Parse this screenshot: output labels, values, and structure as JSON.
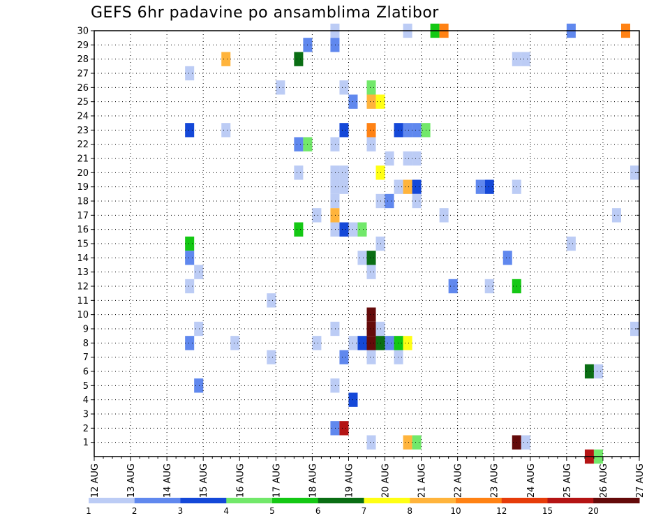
{
  "chart_data": {
    "type": "heatmap",
    "title": "GEFS 6hr padavine po ansamblima Zlatibor",
    "xlabel": "",
    "ylabel": "",
    "x_tick_labels": [
      "12 AUG",
      "13 AUG",
      "14 AUG",
      "15 AUG",
      "16 AUG",
      "17 AUG",
      "18 AUG",
      "19 AUG",
      "20 AUG",
      "21 AUG",
      "22 AUG",
      "23 AUG",
      "24 AUG",
      "25 AUG",
      "26 AUG",
      "27 AUG"
    ],
    "y_tick_labels": [
      "1",
      "2",
      "3",
      "4",
      "5",
      "6",
      "7",
      "8",
      "9",
      "10",
      "11",
      "12",
      "13",
      "14",
      "15",
      "16",
      "17",
      "18",
      "19",
      "20",
      "21",
      "22",
      "23",
      "24",
      "25",
      "26",
      "27",
      "28",
      "29",
      "30"
    ],
    "x_range_days": [
      12,
      27
    ],
    "y_range_members": [
      0,
      30
    ],
    "grid": true,
    "colorbar": {
      "position": "bottom",
      "labels": [
        "1",
        "2",
        "3",
        "4",
        "5",
        "6",
        "7",
        "8",
        "10",
        "12",
        "15",
        "20"
      ],
      "colors": [
        "#bcccf5",
        "#6088ee",
        "#1448d8",
        "#72e86a",
        "#14c814",
        "#0a6e14",
        "#ffff14",
        "#ffb43c",
        "#ff8214",
        "#e63c0a",
        "#b41414",
        "#640a0a"
      ]
    },
    "cells": [
      {
        "member": 30,
        "day": 18.625,
        "level": 1
      },
      {
        "member": 30,
        "day": 20.625,
        "level": 1
      },
      {
        "member": 30,
        "day": 21.375,
        "level": 5
      },
      {
        "member": 30,
        "day": 21.625,
        "level": 9
      },
      {
        "member": 30,
        "day": 25.125,
        "level": 2
      },
      {
        "member": 30,
        "day": 26.625,
        "level": 9
      },
      {
        "member": 29,
        "day": 17.875,
        "level": 2
      },
      {
        "member": 29,
        "day": 18.625,
        "level": 2
      },
      {
        "member": 28,
        "day": 15.625,
        "level": 8
      },
      {
        "member": 28,
        "day": 17.625,
        "level": 6
      },
      {
        "member": 28,
        "day": 23.625,
        "level": 1
      },
      {
        "member": 28,
        "day": 23.875,
        "level": 1
      },
      {
        "member": 27,
        "day": 14.625,
        "level": 1
      },
      {
        "member": 26,
        "day": 17.125,
        "level": 1
      },
      {
        "member": 26,
        "day": 18.875,
        "level": 1
      },
      {
        "member": 26,
        "day": 19.625,
        "level": 4
      },
      {
        "member": 25,
        "day": 19.125,
        "level": 2
      },
      {
        "member": 25,
        "day": 19.625,
        "level": 8
      },
      {
        "member": 25,
        "day": 19.875,
        "level": 7
      },
      {
        "member": 23,
        "day": 14.625,
        "level": 3
      },
      {
        "member": 23,
        "day": 15.625,
        "level": 1
      },
      {
        "member": 23,
        "day": 18.875,
        "level": 3
      },
      {
        "member": 23,
        "day": 19.625,
        "level": 9
      },
      {
        "member": 23,
        "day": 20.375,
        "level": 3
      },
      {
        "member": 23,
        "day": 20.625,
        "level": 2
      },
      {
        "member": 23,
        "day": 20.875,
        "level": 2
      },
      {
        "member": 23,
        "day": 21.125,
        "level": 4
      },
      {
        "member": 22,
        "day": 17.625,
        "level": 2
      },
      {
        "member": 22,
        "day": 17.875,
        "level": 4
      },
      {
        "member": 22,
        "day": 18.625,
        "level": 1
      },
      {
        "member": 22,
        "day": 19.625,
        "level": 1
      },
      {
        "member": 21,
        "day": 20.125,
        "level": 1
      },
      {
        "member": 21,
        "day": 20.625,
        "level": 1
      },
      {
        "member": 21,
        "day": 20.875,
        "level": 1
      },
      {
        "member": 20,
        "day": 17.625,
        "level": 1
      },
      {
        "member": 20,
        "day": 18.625,
        "level": 1
      },
      {
        "member": 20,
        "day": 18.875,
        "level": 1
      },
      {
        "member": 20,
        "day": 19.875,
        "level": 7
      },
      {
        "member": 20,
        "day": 26.875,
        "level": 1
      },
      {
        "member": 19,
        "day": 18.625,
        "level": 1
      },
      {
        "member": 19,
        "day": 18.875,
        "level": 1
      },
      {
        "member": 19,
        "day": 20.375,
        "level": 1
      },
      {
        "member": 19,
        "day": 20.625,
        "level": 8
      },
      {
        "member": 19,
        "day": 20.875,
        "level": 3
      },
      {
        "member": 19,
        "day": 22.625,
        "level": 2
      },
      {
        "member": 19,
        "day": 22.875,
        "level": 3
      },
      {
        "member": 19,
        "day": 23.625,
        "level": 1
      },
      {
        "member": 18,
        "day": 18.625,
        "level": 1
      },
      {
        "member": 18,
        "day": 19.875,
        "level": 1
      },
      {
        "member": 18,
        "day": 20.125,
        "level": 2
      },
      {
        "member": 18,
        "day": 20.875,
        "level": 1
      },
      {
        "member": 17,
        "day": 18.125,
        "level": 1
      },
      {
        "member": 17,
        "day": 18.625,
        "level": 8
      },
      {
        "member": 17,
        "day": 21.625,
        "level": 1
      },
      {
        "member": 17,
        "day": 26.375,
        "level": 1
      },
      {
        "member": 16,
        "day": 17.625,
        "level": 5
      },
      {
        "member": 16,
        "day": 18.625,
        "level": 1
      },
      {
        "member": 16,
        "day": 18.875,
        "level": 3
      },
      {
        "member": 16,
        "day": 19.125,
        "level": 1
      },
      {
        "member": 16,
        "day": 19.375,
        "level": 4
      },
      {
        "member": 15,
        "day": 14.625,
        "level": 5
      },
      {
        "member": 15,
        "day": 19.875,
        "level": 1
      },
      {
        "member": 15,
        "day": 25.125,
        "level": 1
      },
      {
        "member": 14,
        "day": 14.625,
        "level": 2
      },
      {
        "member": 14,
        "day": 19.375,
        "level": 1
      },
      {
        "member": 14,
        "day": 19.625,
        "level": 6
      },
      {
        "member": 14,
        "day": 23.375,
        "level": 2
      },
      {
        "member": 13,
        "day": 14.875,
        "level": 1
      },
      {
        "member": 13,
        "day": 19.625,
        "level": 1
      },
      {
        "member": 12,
        "day": 14.625,
        "level": 1
      },
      {
        "member": 12,
        "day": 21.875,
        "level": 2
      },
      {
        "member": 12,
        "day": 22.875,
        "level": 1
      },
      {
        "member": 12,
        "day": 23.625,
        "level": 5
      },
      {
        "member": 11,
        "day": 16.875,
        "level": 1
      },
      {
        "member": 10,
        "day": 19.625,
        "level": 12
      },
      {
        "member": 9,
        "day": 14.875,
        "level": 1
      },
      {
        "member": 9,
        "day": 18.625,
        "level": 1
      },
      {
        "member": 9,
        "day": 19.625,
        "level": 12
      },
      {
        "member": 9,
        "day": 19.875,
        "level": 1
      },
      {
        "member": 9,
        "day": 26.875,
        "level": 1
      },
      {
        "member": 8,
        "day": 14.625,
        "level": 2
      },
      {
        "member": 8,
        "day": 15.875,
        "level": 1
      },
      {
        "member": 8,
        "day": 18.125,
        "level": 1
      },
      {
        "member": 8,
        "day": 19.125,
        "level": 1
      },
      {
        "member": 8,
        "day": 19.375,
        "level": 3
      },
      {
        "member": 8,
        "day": 19.625,
        "level": 12
      },
      {
        "member": 8,
        "day": 19.875,
        "level": 6
      },
      {
        "member": 8,
        "day": 20.125,
        "level": 2
      },
      {
        "member": 8,
        "day": 20.375,
        "level": 5
      },
      {
        "member": 8,
        "day": 20.625,
        "level": 7
      },
      {
        "member": 7,
        "day": 16.875,
        "level": 1
      },
      {
        "member": 7,
        "day": 18.875,
        "level": 2
      },
      {
        "member": 7,
        "day": 19.625,
        "level": 1
      },
      {
        "member": 7,
        "day": 20.375,
        "level": 1
      },
      {
        "member": 6,
        "day": 25.625,
        "level": 6
      },
      {
        "member": 6,
        "day": 25.875,
        "level": 1
      },
      {
        "member": 5,
        "day": 14.875,
        "level": 2
      },
      {
        "member": 5,
        "day": 18.625,
        "level": 1
      },
      {
        "member": 4,
        "day": 19.125,
        "level": 3
      },
      {
        "member": 2,
        "day": 18.625,
        "level": 2
      },
      {
        "member": 2,
        "day": 18.875,
        "level": 11
      },
      {
        "member": 1,
        "day": 19.625,
        "level": 1
      },
      {
        "member": 1,
        "day": 20.625,
        "level": 8
      },
      {
        "member": 1,
        "day": 20.875,
        "level": 4
      },
      {
        "member": 1,
        "day": 23.625,
        "level": 12
      },
      {
        "member": 1,
        "day": 23.875,
        "level": 1
      },
      {
        "member": 0,
        "day": 25.625,
        "level": 11
      },
      {
        "member": 0,
        "day": 25.875,
        "level": 4
      }
    ]
  }
}
